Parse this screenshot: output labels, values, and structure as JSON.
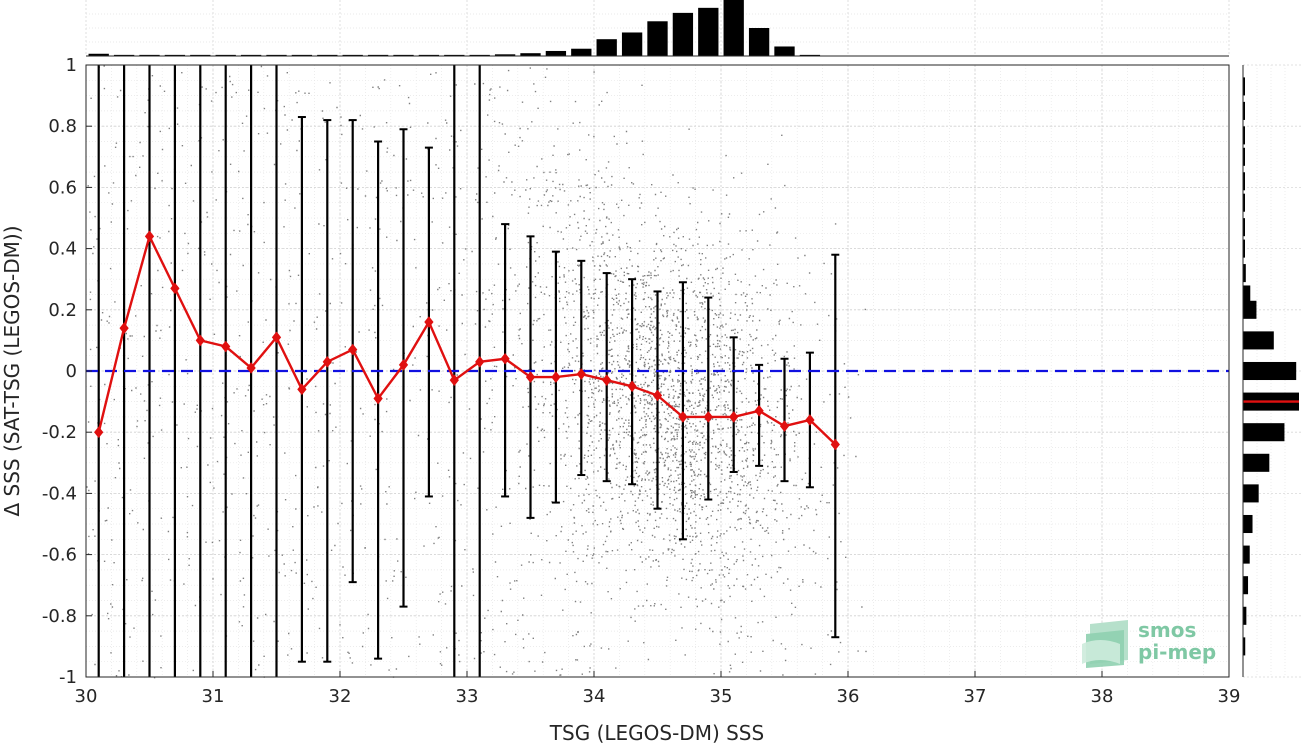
{
  "chart_data": {
    "type": "scatter",
    "xlabel": "TSG (LEGOS-DM) SSS",
    "ylabel": "Δ SSS (SAT-TSG (LEGOS-DM))",
    "xlim": [
      30,
      39
    ],
    "ylim": [
      -1,
      1
    ],
    "xticks": [
      30,
      31,
      32,
      33,
      34,
      35,
      36,
      37,
      38,
      39
    ],
    "yticks": [
      -1,
      -0.8,
      -0.6,
      -0.4,
      -0.2,
      0,
      0.2,
      0.4,
      0.6,
      0.8,
      1
    ],
    "ytick_labels": [
      "-1",
      "-0.8",
      "-0.6",
      "-0.4",
      "-0.2",
      "0",
      "0.2",
      "0.4",
      "0.6",
      "0.8",
      "1"
    ],
    "grid": true,
    "zero_line": {
      "y": 0,
      "color": "#1010e0",
      "style": "dashed"
    },
    "scatter_color": "#808080",
    "mean_color": "#e01010",
    "series": [
      {
        "type": "line-errorbar",
        "x": [
          30.1,
          30.3,
          30.5,
          30.7,
          30.9,
          31.1,
          31.3,
          31.5,
          31.7,
          31.9,
          32.1,
          32.3,
          32.5,
          32.7,
          32.9,
          33.1,
          33.3,
          33.5,
          33.7,
          33.9,
          34.1,
          34.3,
          34.5,
          34.7,
          34.9,
          35.1,
          35.3,
          35.5,
          35.7,
          35.9
        ],
        "mean": [
          -0.2,
          0.14,
          0.44,
          0.27,
          0.1,
          0.08,
          0.01,
          0.11,
          -0.06,
          0.03,
          0.07,
          -0.09,
          0.02,
          0.16,
          -0.03,
          0.03,
          0.04,
          -0.02,
          -0.02,
          -0.01,
          -0.03,
          -0.05,
          -0.08,
          -0.15,
          -0.15,
          -0.15,
          -0.13,
          -0.18,
          -0.16,
          -0.24
        ],
        "err_low": [
          -1.5,
          -1.5,
          -1.5,
          -1.5,
          -1.5,
          -1.5,
          -1.5,
          -1.5,
          -0.95,
          -0.95,
          -0.69,
          -0.94,
          -0.77,
          -0.41,
          -1.5,
          -1.5,
          -0.41,
          -0.48,
          -0.43,
          -0.34,
          -0.36,
          -0.37,
          -0.45,
          -0.55,
          -0.42,
          -0.33,
          -0.31,
          -0.36,
          -0.38,
          -0.87
        ],
        "err_high": [
          1.5,
          1.5,
          1.5,
          1.5,
          1.5,
          1.5,
          1.5,
          1.5,
          0.83,
          0.82,
          0.82,
          0.75,
          0.79,
          0.73,
          1.5,
          1.5,
          0.48,
          0.44,
          0.39,
          0.36,
          0.32,
          0.3,
          0.26,
          0.29,
          0.24,
          0.11,
          0.02,
          0.04,
          0.06,
          0.38
        ]
      }
    ],
    "top_histogram": {
      "bin_width": 0.2,
      "bin_starts": [
        30.0,
        30.2,
        30.4,
        30.6,
        30.8,
        31.0,
        31.2,
        31.4,
        31.6,
        31.8,
        32.0,
        32.2,
        32.4,
        32.6,
        32.8,
        33.0,
        33.2,
        33.4,
        33.6,
        33.8,
        34.0,
        34.2,
        34.4,
        34.6,
        34.8,
        35.0,
        35.2,
        35.4,
        35.6
      ],
      "counts": [
        0.04,
        0.02,
        0.02,
        0.02,
        0.02,
        0.02,
        0.02,
        0.02,
        0.02,
        0.02,
        0.02,
        0.02,
        0.02,
        0.02,
        0.02,
        0.02,
        0.03,
        0.05,
        0.09,
        0.13,
        0.3,
        0.42,
        0.62,
        0.77,
        0.86,
        1.0,
        0.5,
        0.17,
        0.02
      ]
    },
    "right_histogram": {
      "bin_width": 0.075,
      "bin_centers": [
        0.93,
        0.85,
        0.77,
        0.7,
        0.62,
        0.55,
        0.47,
        0.4,
        0.32,
        0.25,
        0.2,
        0.1,
        0.0,
        -0.1,
        -0.2,
        -0.3,
        -0.4,
        -0.5,
        -0.6,
        -0.7,
        -0.8,
        -0.9
      ],
      "counts": [
        0.01,
        0.01,
        0.01,
        0.01,
        0.01,
        0.01,
        0.02,
        0.03,
        0.05,
        0.13,
        0.24,
        0.55,
        0.95,
        1.0,
        0.74,
        0.47,
        0.28,
        0.17,
        0.12,
        0.09,
        0.06,
        0.04
      ],
      "median_line": -0.1
    },
    "logo": {
      "line1": "smos",
      "line2": "pi-mep"
    }
  }
}
